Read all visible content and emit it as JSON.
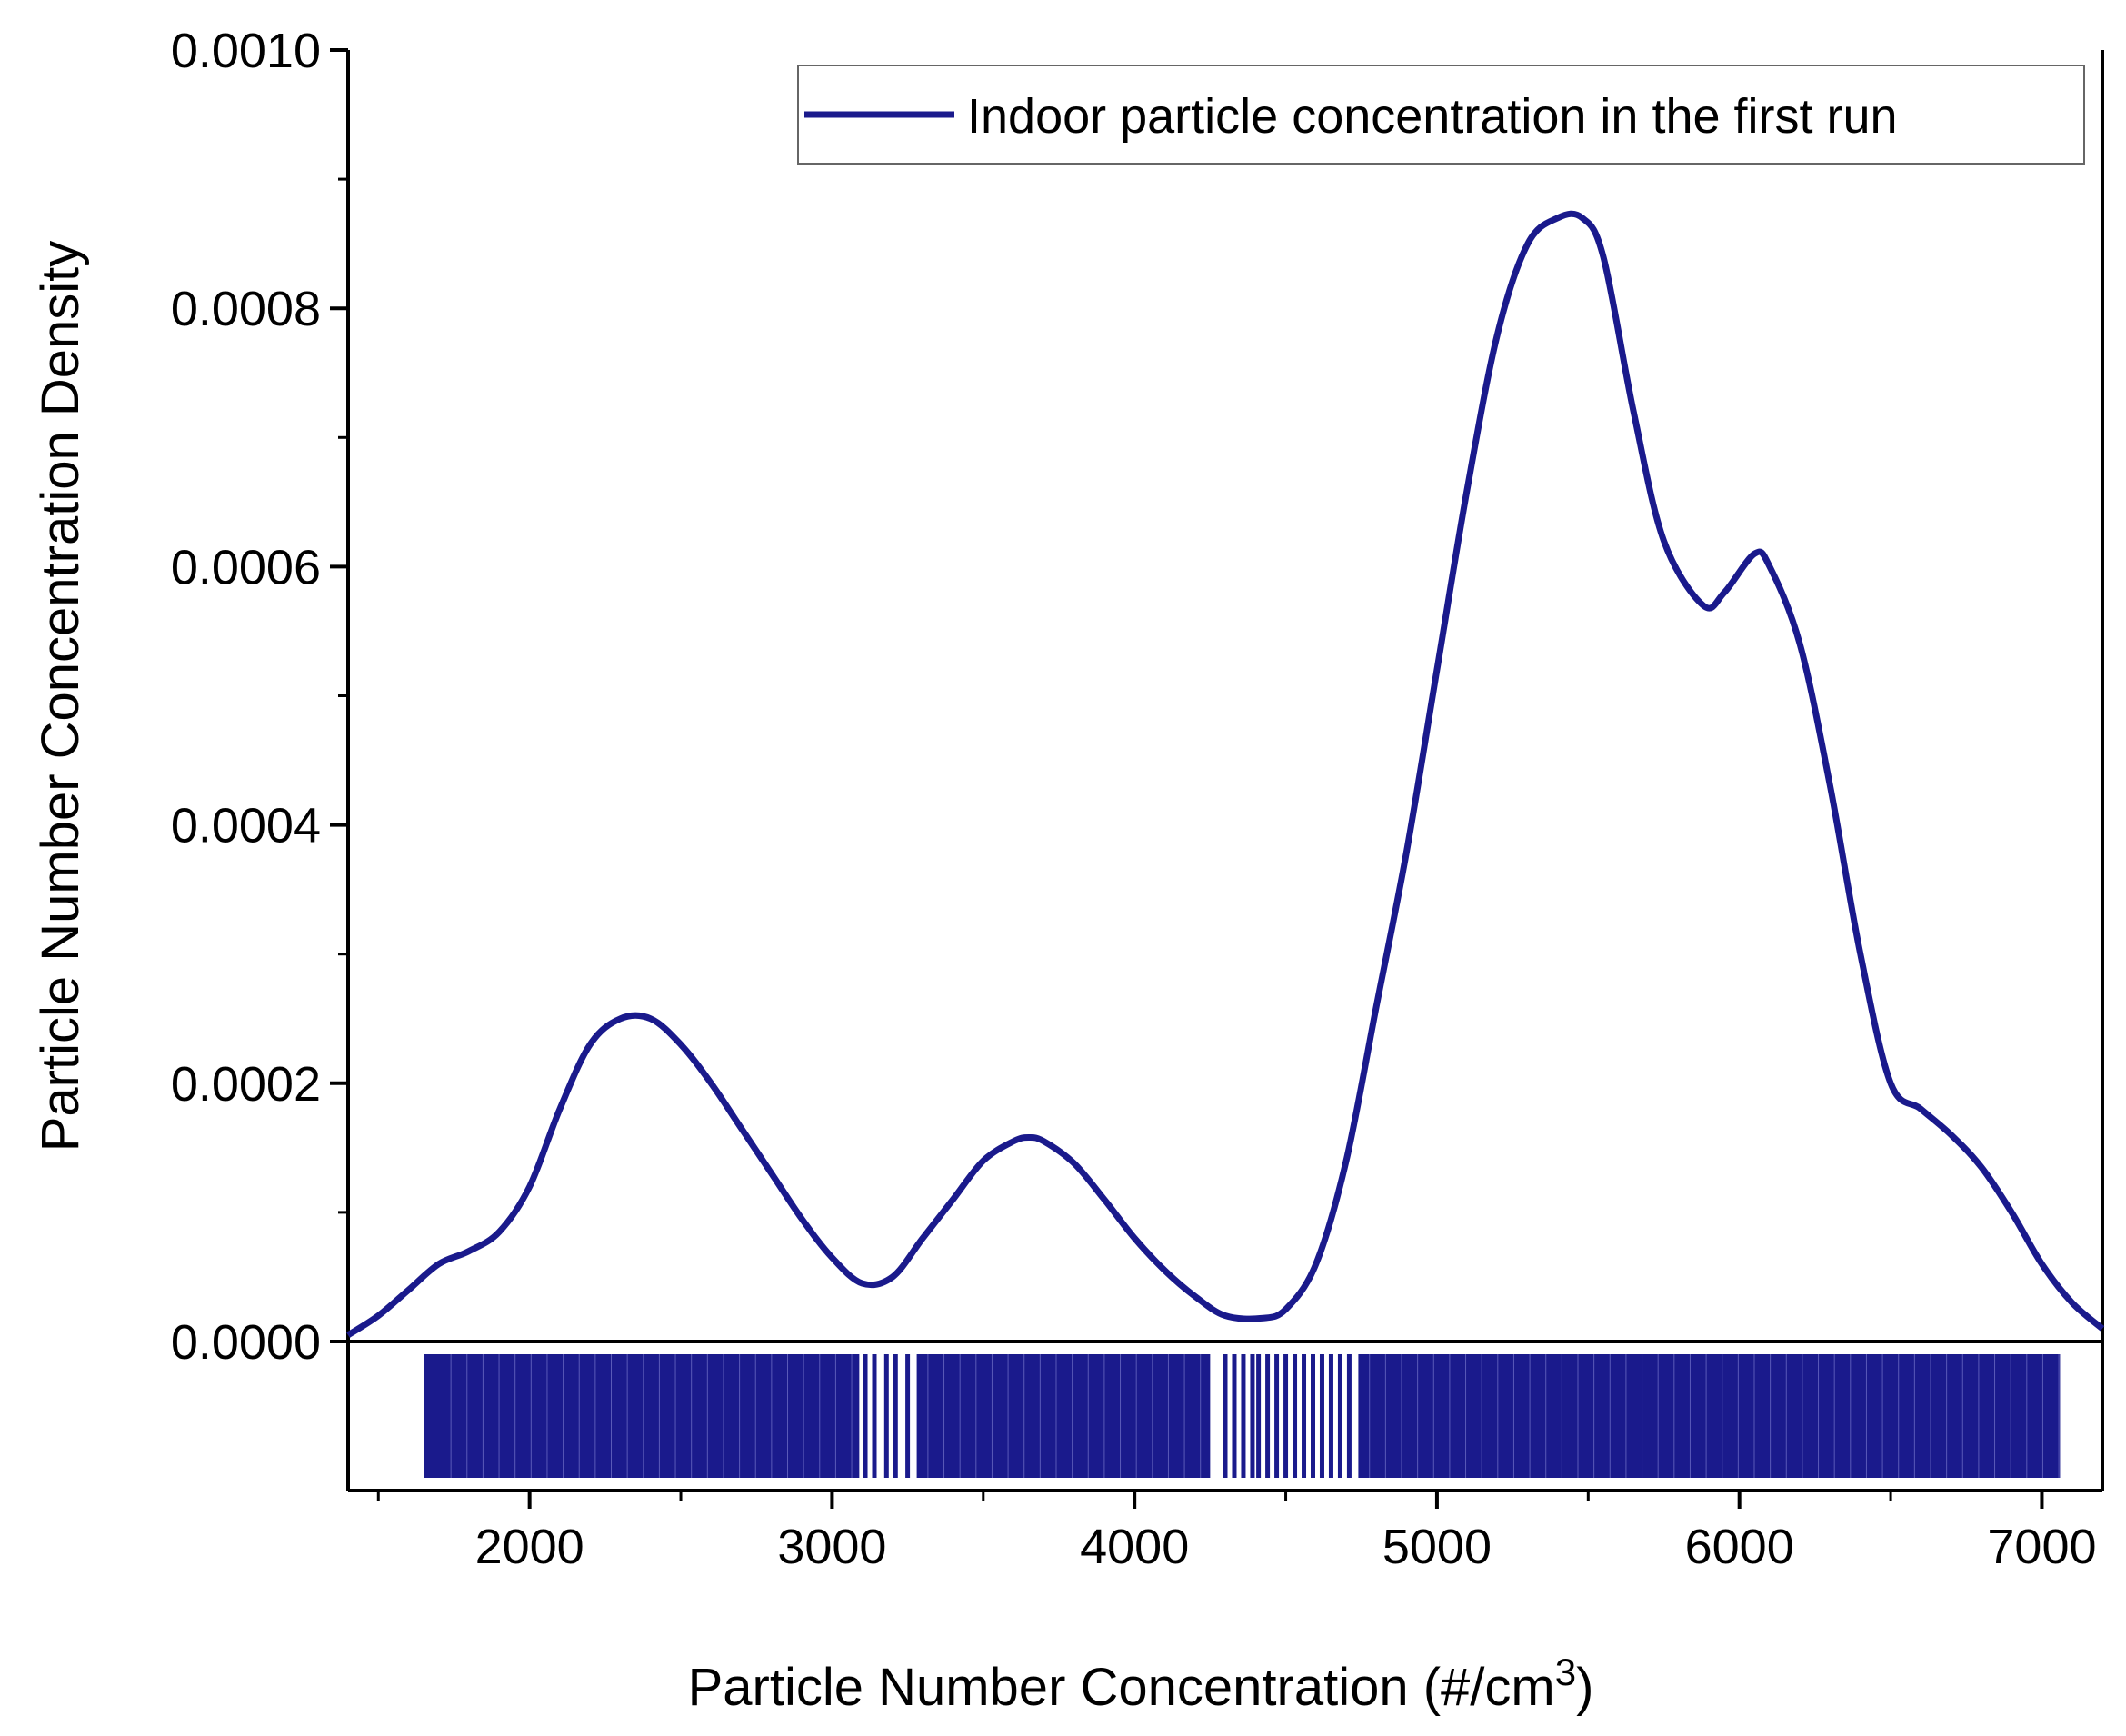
{
  "chart_data": {
    "type": "line",
    "xlabel": "Particle Number Concentration (#/cm",
    "xlabel_superscript": "3",
    "xlabel_suffix": ")",
    "ylabel": "Particle Number Concentration Density",
    "xlim": [
      1400,
      7200
    ],
    "ylim": [
      0,
      0.001
    ],
    "x_ticks": [
      2000,
      3000,
      4000,
      5000,
      6000,
      7000
    ],
    "x_tick_labels": [
      "2000",
      "3000",
      "4000",
      "5000",
      "6000",
      "7000"
    ],
    "y_ticks": [
      0,
      0.0002,
      0.0004,
      0.0006,
      0.0008,
      0.001
    ],
    "y_tick_labels": [
      "0.0000",
      "0.0002",
      "0.0004",
      "0.0006",
      "0.0008",
      "0.0010"
    ],
    "grid": false,
    "legend_position": "top-right",
    "colors": {
      "series": "#1a1a8c"
    },
    "series": [
      {
        "name": "Indoor particle concentration in the first run",
        "x": [
          1400,
          1500,
          1600,
          1700,
          1800,
          1900,
          2000,
          2100,
          2200,
          2300,
          2400,
          2500,
          2600,
          2700,
          2800,
          2900,
          3000,
          3100,
          3200,
          3300,
          3400,
          3500,
          3600,
          3650,
          3700,
          3800,
          3900,
          4000,
          4100,
          4200,
          4300,
          4420,
          4500,
          4600,
          4700,
          4800,
          4900,
          5000,
          5100,
          5200,
          5300,
          5400,
          5480,
          5550,
          5650,
          5750,
          5880,
          5950,
          6050,
          6100,
          6200,
          6300,
          6400,
          6500,
          6600,
          6700,
          6800,
          6900,
          7000,
          7100,
          7200
        ],
        "y": [
          5e-06,
          2e-05,
          4e-05,
          6e-05,
          7e-05,
          8.5e-05,
          0.00012,
          0.00018,
          0.00023,
          0.00025,
          0.00025,
          0.00023,
          0.0002,
          0.000165,
          0.00013,
          9.5e-05,
          6.5e-05,
          4.5e-05,
          5e-05,
          8e-05,
          0.00011,
          0.00014,
          0.000155,
          0.000158,
          0.000155,
          0.000138,
          0.00011,
          8e-05,
          5.5e-05,
          3.5e-05,
          2e-05,
          1.8e-05,
          2.5e-05,
          6e-05,
          0.00014,
          0.00026,
          0.00038,
          0.00052,
          0.00066,
          0.00078,
          0.00085,
          0.00087,
          0.00087,
          0.00084,
          0.00072,
          0.00062,
          0.00057,
          0.00058,
          0.00061,
          0.0006,
          0.00054,
          0.00043,
          0.0003,
          0.0002,
          0.00018,
          0.00016,
          0.000135,
          0.0001,
          6e-05,
          3e-05,
          1e-05
        ]
      }
    ],
    "rug": {
      "description_values": [],
      "dense_ranges": [
        [
          1650,
          3090
        ],
        [
          3280,
          4250
        ],
        [
          4740,
          7060
        ]
      ],
      "sparse_values": [
        1660,
        1690,
        3110,
        3140,
        3180,
        3210,
        3250,
        4300,
        4330,
        4360,
        4390,
        4410,
        4440,
        4470,
        4500,
        4530,
        4560,
        4590,
        4620,
        4650,
        4680,
        4710
      ]
    }
  }
}
